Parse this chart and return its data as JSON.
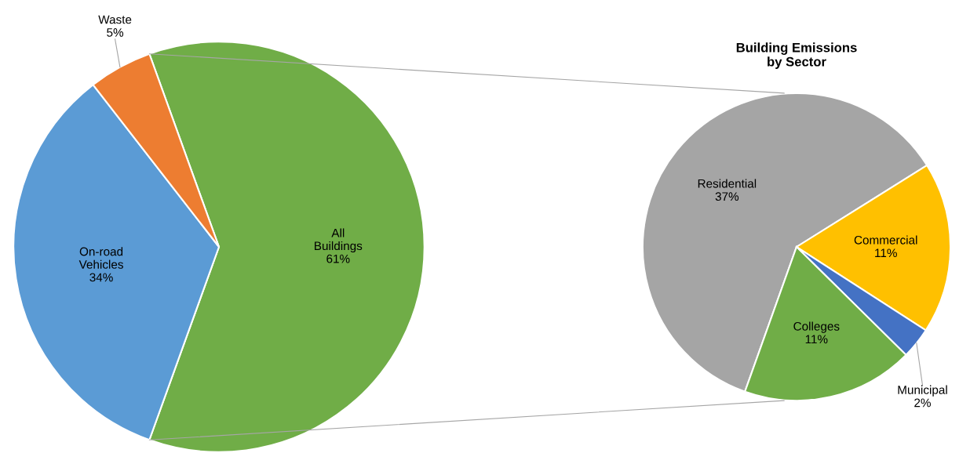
{
  "chart_data": [
    {
      "type": "pie",
      "categories": [
        "All\nBuildings",
        "On-road\nVehicles",
        "Waste"
      ],
      "values": [
        61,
        34,
        5
      ],
      "colors": [
        "#70ad47",
        "#5b9bd5",
        "#ed7d31"
      ],
      "value_labels": [
        "61%",
        "34%",
        "5%"
      ]
    },
    {
      "type": "pie",
      "title": "Building Emissions\nby Sector",
      "categories": [
        "Residential",
        "Commercial",
        "Municipal",
        "Colleges"
      ],
      "values": [
        37,
        11,
        2,
        11
      ],
      "colors": [
        "#a5a5a5",
        "#ffc000",
        "#4472c4",
        "#70ad47"
      ],
      "value_labels": [
        "37%",
        "11%",
        "2%",
        "11%"
      ]
    }
  ]
}
